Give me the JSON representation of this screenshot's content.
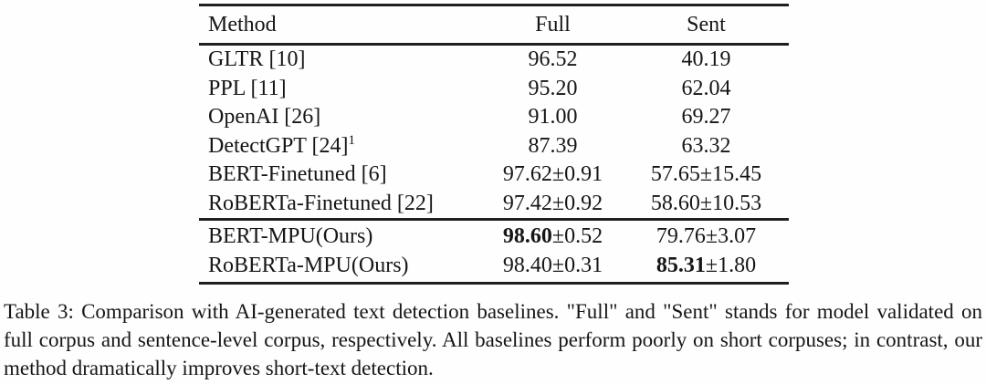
{
  "table": {
    "header": [
      "Method",
      "Full",
      "Sent"
    ],
    "sections": [
      {
        "name": "baselines",
        "rows": [
          {
            "method": [
              {
                "t": "GLTR [10]"
              }
            ],
            "full": [
              {
                "t": "96.52"
              }
            ],
            "sent": [
              {
                "t": "40.19"
              }
            ]
          },
          {
            "method": [
              {
                "t": "PPL [11]"
              }
            ],
            "full": [
              {
                "t": "95.20"
              }
            ],
            "sent": [
              {
                "t": "62.04"
              }
            ]
          },
          {
            "method": [
              {
                "t": "OpenAI [26]"
              }
            ],
            "full": [
              {
                "t": "91.00"
              }
            ],
            "sent": [
              {
                "t": "69.27"
              }
            ]
          },
          {
            "method": [
              {
                "t": "DetectGPT [24]"
              },
              {
                "t": "1",
                "sup": true
              }
            ],
            "full": [
              {
                "t": "87.39"
              }
            ],
            "sent": [
              {
                "t": "63.32"
              }
            ]
          },
          {
            "method": [
              {
                "t": "BERT-Finetuned [6]"
              }
            ],
            "full": [
              {
                "t": "97.62±0.91"
              }
            ],
            "sent": [
              {
                "t": "57.65±15.45"
              }
            ]
          },
          {
            "method": [
              {
                "t": "RoBERTa-Finetuned [22]"
              }
            ],
            "full": [
              {
                "t": "97.42±0.92"
              }
            ],
            "sent": [
              {
                "t": "58.60±10.53"
              }
            ]
          }
        ]
      },
      {
        "name": "ours",
        "rows": [
          {
            "method": [
              {
                "t": "BERT-MPU(Ours)"
              }
            ],
            "full": [
              {
                "t": "98.60",
                "b": true
              },
              {
                "t": "±0.52"
              }
            ],
            "sent": [
              {
                "t": "79.76±3.07"
              }
            ]
          },
          {
            "method": [
              {
                "t": "RoBERTa-MPU(Ours)"
              }
            ],
            "full": [
              {
                "t": "98.40±0.31"
              }
            ],
            "sent": [
              {
                "t": "85.31",
                "b": true
              },
              {
                "t": "±1.80"
              }
            ]
          }
        ]
      }
    ]
  },
  "caption": {
    "text": "Table 3: Comparison with AI-generated text detection baselines. \"Full\" and \"Sent\" stands for model validated on full corpus and sentence-level corpus, respectively.  All baselines perform poorly on short corpuses; in contrast, our method dramatically improves short-text detection."
  },
  "colors": {
    "text": "#161616",
    "rule": "#1f1f1f",
    "background": "#fefefe"
  }
}
